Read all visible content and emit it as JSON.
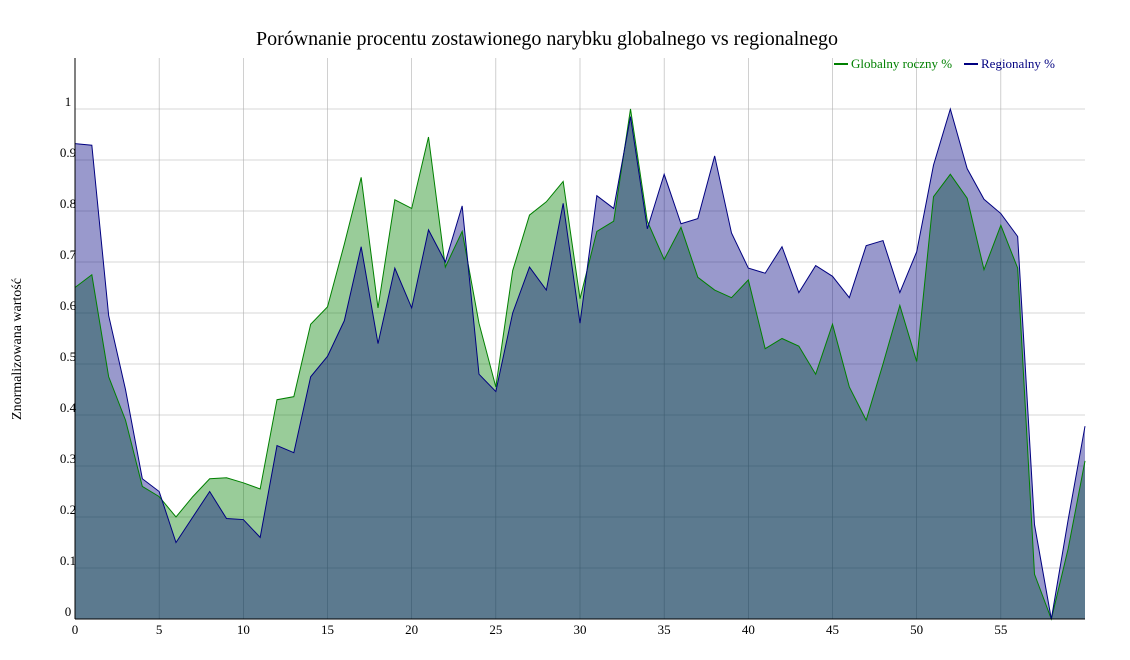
{
  "colors": {
    "global_fill": "#008000",
    "global_line": "#008000",
    "regional_fill": "#000080",
    "regional_line": "#000080"
  },
  "chart_data": {
    "type": "area",
    "title": "Porównanie procentu zostawionego narybku globalnego vs regionalnego",
    "xlabel": "",
    "ylabel": "Znormalizowana wartość",
    "xlim": [
      0,
      60
    ],
    "ylim": [
      0,
      1.1
    ],
    "x_ticks": [
      0,
      5,
      10,
      15,
      20,
      25,
      30,
      35,
      40,
      45,
      50,
      55
    ],
    "y_ticks": [
      0,
      0.1,
      0.2,
      0.3,
      0.4,
      0.5,
      0.6,
      0.7,
      0.8,
      0.9,
      1
    ],
    "y_tick_labels": [
      "0",
      "0.1",
      "0.2",
      "0.3",
      "0.4",
      "0.5",
      "0.6",
      "0.7",
      "0.8",
      "0.9",
      "1"
    ],
    "grid": true,
    "legend_position": "top-right",
    "x": [
      0,
      1,
      2,
      3,
      4,
      5,
      6,
      7,
      8,
      9,
      10,
      11,
      12,
      13,
      14,
      15,
      16,
      17,
      18,
      19,
      20,
      21,
      22,
      23,
      24,
      25,
      26,
      27,
      28,
      29,
      30,
      31,
      32,
      33,
      34,
      35,
      36,
      37,
      38,
      39,
      40,
      41,
      42,
      43,
      44,
      45,
      46,
      47,
      48,
      49,
      50,
      51,
      52,
      53,
      54,
      55,
      56,
      57,
      58,
      59,
      60
    ],
    "series": [
      {
        "name": "Globalny roczny %",
        "color": "#008000",
        "fill_opacity": 0.4,
        "values": [
          0.65,
          0.675,
          0.475,
          0.39,
          0.26,
          0.24,
          0.2,
          0.24,
          0.275,
          0.277,
          0.267,
          0.255,
          0.43,
          0.436,
          0.578,
          0.612,
          0.735,
          0.866,
          0.61,
          0.822,
          0.805,
          0.945,
          0.69,
          0.76,
          0.58,
          0.455,
          0.683,
          0.792,
          0.818,
          0.858,
          0.628,
          0.76,
          0.78,
          1.0,
          0.78,
          0.705,
          0.768,
          0.67,
          0.645,
          0.63,
          0.665,
          0.53,
          0.55,
          0.535,
          0.48,
          0.578,
          0.455,
          0.39,
          0.5,
          0.615,
          0.505,
          0.828,
          0.872,
          0.825,
          0.685,
          0.772,
          0.688,
          0.088,
          0.0,
          0.138,
          0.31
        ]
      },
      {
        "name": "Regionalny %",
        "color": "#000080",
        "fill_opacity": 0.4,
        "values": [
          0.932,
          0.929,
          0.595,
          0.45,
          0.275,
          0.25,
          0.15,
          0.2,
          0.25,
          0.197,
          0.195,
          0.16,
          0.34,
          0.326,
          0.475,
          0.515,
          0.585,
          0.73,
          0.54,
          0.688,
          0.61,
          0.763,
          0.7,
          0.81,
          0.48,
          0.446,
          0.6,
          0.69,
          0.645,
          0.815,
          0.58,
          0.83,
          0.805,
          0.985,
          0.765,
          0.872,
          0.775,
          0.785,
          0.908,
          0.757,
          0.688,
          0.678,
          0.73,
          0.64,
          0.693,
          0.672,
          0.63,
          0.732,
          0.742,
          0.64,
          0.72,
          0.89,
          1.0,
          0.883,
          0.823,
          0.795,
          0.75,
          0.185,
          0.0,
          0.195,
          0.378
        ]
      }
    ]
  }
}
